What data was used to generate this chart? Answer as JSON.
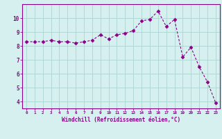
{
  "x": [
    0,
    1,
    2,
    3,
    4,
    5,
    6,
    7,
    8,
    9,
    10,
    11,
    12,
    13,
    14,
    15,
    16,
    17,
    18,
    19,
    20,
    21,
    22,
    23
  ],
  "y": [
    8.3,
    8.3,
    8.3,
    8.4,
    8.3,
    8.3,
    8.2,
    8.3,
    8.4,
    8.8,
    8.5,
    8.8,
    8.9,
    9.1,
    9.8,
    9.9,
    10.5,
    9.4,
    9.9,
    7.2,
    7.9,
    6.5,
    5.4,
    3.9
  ],
  "line_color": "#8B008B",
  "marker": "D",
  "marker_size": 2.5,
  "bg_color": "#d5f0ee",
  "grid_color": "#b0d8d4",
  "xlabel": "Windchill (Refroidissement éolien,°C)",
  "xlabel_color": "#8B008B",
  "xtick_labels": [
    "0",
    "1",
    "2",
    "3",
    "4",
    "5",
    "6",
    "7",
    "8",
    "9",
    "10",
    "11",
    "12",
    "13",
    "14",
    "15",
    "16",
    "17",
    "18",
    "19",
    "20",
    "21",
    "22",
    "23"
  ],
  "ytick_labels": [
    "4",
    "5",
    "6",
    "7",
    "8",
    "9",
    "10"
  ],
  "ylim": [
    3.5,
    11.0
  ],
  "xlim": [
    -0.5,
    23.5
  ],
  "tick_color": "#8B008B",
  "spine_color": "#8B008B"
}
